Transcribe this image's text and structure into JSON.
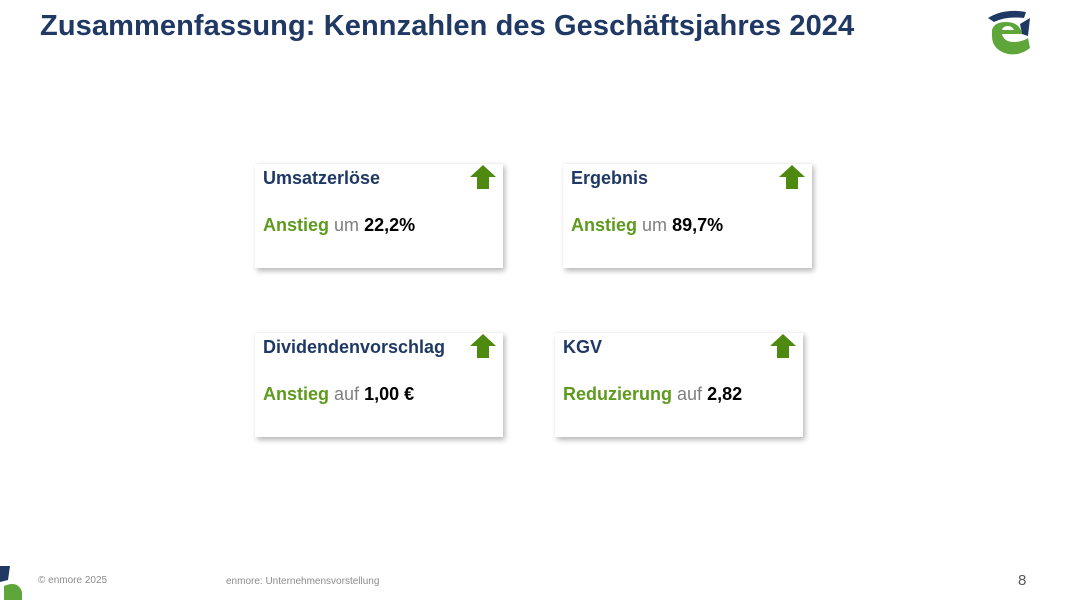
{
  "title": "Zusammenfassung: Kennzahlen des Geschäftsjahres 2024",
  "colors": {
    "title": "#1f3864",
    "keyword_green": "#5e9a1e",
    "arrow_green": "#4f8a10",
    "logo_navy": "#1f3864",
    "logo_green": "#5ea63a"
  },
  "cards": [
    {
      "heading": "Umsatzerlöse",
      "keyword": "Anstieg",
      "connector": "um",
      "value": "22,2%",
      "icon": "arrow-up-icon"
    },
    {
      "heading": "Ergebnis",
      "keyword": "Anstieg",
      "connector": "um",
      "value": "89,7%",
      "icon": "arrow-up-icon"
    },
    {
      "heading": "Dividendenvorschlag",
      "keyword": "Anstieg",
      "connector": "auf",
      "value": "1,00 €",
      "icon": "arrow-up-icon"
    },
    {
      "heading": "KGV",
      "keyword": "Reduzierung",
      "connector": "auf",
      "value": "2,82",
      "icon": "arrow-up-icon"
    }
  ],
  "footer": {
    "copyright": "© enmore 2025",
    "center": "enmore: Unternehmensvorstellung",
    "page_number": "8"
  }
}
